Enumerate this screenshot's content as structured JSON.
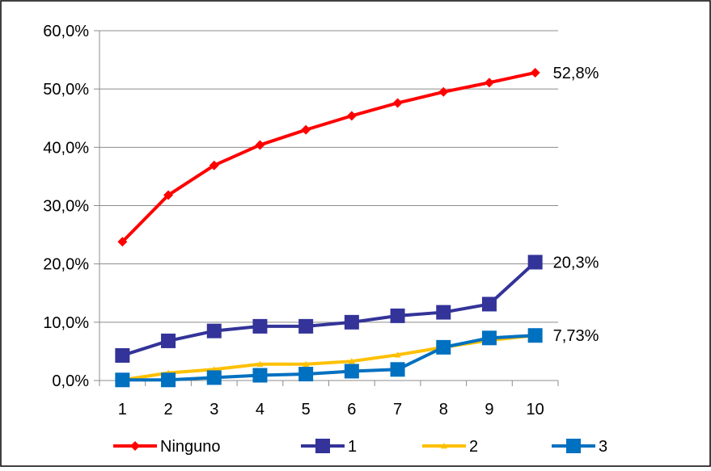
{
  "chart_data": {
    "type": "line",
    "categories": [
      "1",
      "2",
      "3",
      "4",
      "5",
      "6",
      "7",
      "8",
      "9",
      "10"
    ],
    "ylim": [
      0,
      60
    ],
    "y_ticks": [
      "0,0%",
      "10,0%",
      "20,0%",
      "30,0%",
      "40,0%",
      "50,0%",
      "60,0%"
    ],
    "y_tick_values": [
      0,
      10,
      20,
      30,
      40,
      50,
      60
    ],
    "grid": true,
    "legend_position": "bottom",
    "series": [
      {
        "name": "Ninguno",
        "color": "#FF0000",
        "marker": "diamond",
        "values": [
          23.8,
          31.8,
          36.9,
          40.4,
          43.0,
          45.4,
          47.6,
          49.5,
          51.1,
          52.8
        ]
      },
      {
        "name": "1",
        "color": "#333399",
        "marker": "square",
        "values": [
          4.3,
          6.8,
          8.5,
          9.3,
          9.3,
          10.0,
          11.1,
          11.7,
          13.1,
          20.3
        ]
      },
      {
        "name": "2",
        "color": "#FFC000",
        "marker": "triangle",
        "values": [
          0.1,
          1.3,
          1.9,
          2.8,
          2.8,
          3.3,
          4.4,
          5.7,
          6.9,
          7.73
        ]
      },
      {
        "name": "3",
        "color": "#0070C0",
        "marker": "square",
        "values": [
          0.1,
          0.1,
          0.5,
          0.9,
          1.1,
          1.6,
          1.9,
          5.7,
          7.3,
          7.73
        ]
      }
    ],
    "data_labels": [
      {
        "series": 0,
        "index": 9,
        "text": "52,8%"
      },
      {
        "series": 1,
        "index": 9,
        "text": "20,3%"
      },
      {
        "series": 3,
        "index": 9,
        "text": "7,73%"
      }
    ]
  }
}
